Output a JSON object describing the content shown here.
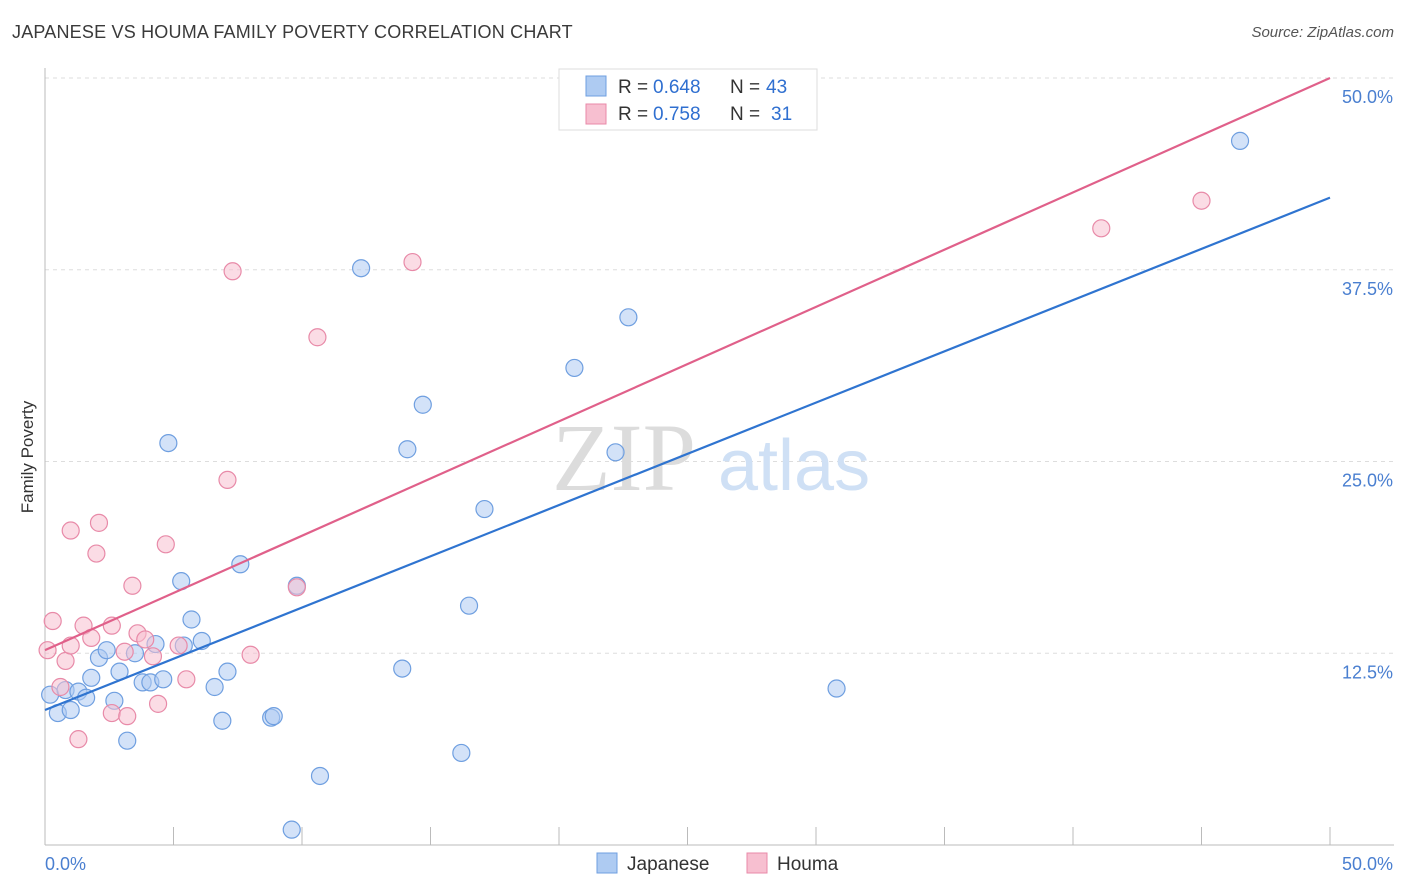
{
  "header": {
    "title": "JAPANESE VS HOUMA FAMILY POVERTY CORRELATION CHART",
    "source": "Source: ZipAtlas.com"
  },
  "watermark": {
    "zip": "ZIP",
    "atlas": "atlas"
  },
  "colors": {
    "japanese_fill": "#aecbf2",
    "japanese_stroke": "#6f9fe0",
    "japanese_line": "#2f74d0",
    "houma_fill": "#f7bfd0",
    "houma_stroke": "#e88aa8",
    "houma_line": "#e0608a",
    "tick_label": "#4a7fd0",
    "grid": "#dddddd"
  },
  "chart_data": {
    "type": "scatter",
    "title": "JAPANESE VS HOUMA FAMILY POVERTY CORRELATION CHART",
    "xlabel": "",
    "ylabel": "Family Poverty",
    "xlim": [
      0,
      50
    ],
    "ylim": [
      0,
      50
    ],
    "x_tick_labels": {
      "min": "0.0%",
      "max": "50.0%"
    },
    "y_ticks": [
      {
        "value": 12.5,
        "label": "12.5%"
      },
      {
        "value": 25.0,
        "label": "25.0%"
      },
      {
        "value": 37.5,
        "label": "37.5%"
      },
      {
        "value": 50.0,
        "label": "50.0%"
      }
    ],
    "legend": {
      "placement": "top-center",
      "entries": [
        {
          "series": "Japanese",
          "r_label": "R =",
          "r_value": "0.648",
          "n_label": "N =",
          "n_value": "43"
        },
        {
          "series": "Houma",
          "r_label": "R =",
          "r_value": "0.758",
          "n_label": "N =",
          "n_value": "31"
        }
      ]
    },
    "series": [
      {
        "name": "Japanese",
        "trend": {
          "x": [
            0,
            50
          ],
          "y": [
            8.8,
            42.2
          ]
        },
        "points": [
          [
            0.2,
            9.8
          ],
          [
            0.5,
            8.6
          ],
          [
            0.8,
            10.1
          ],
          [
            1.0,
            8.8
          ],
          [
            1.3,
            10.0
          ],
          [
            1.6,
            9.6
          ],
          [
            1.8,
            10.9
          ],
          [
            2.1,
            12.2
          ],
          [
            2.4,
            12.7
          ],
          [
            2.7,
            9.4
          ],
          [
            2.9,
            11.3
          ],
          [
            3.2,
            6.8
          ],
          [
            3.5,
            12.5
          ],
          [
            3.8,
            10.6
          ],
          [
            4.1,
            10.6
          ],
          [
            4.3,
            13.1
          ],
          [
            4.6,
            10.8
          ],
          [
            4.8,
            26.2
          ],
          [
            5.3,
            17.2
          ],
          [
            5.4,
            13.0
          ],
          [
            5.7,
            14.7
          ],
          [
            6.1,
            13.3
          ],
          [
            6.6,
            10.3
          ],
          [
            6.9,
            8.1
          ],
          [
            7.1,
            11.3
          ],
          [
            7.6,
            18.3
          ],
          [
            8.8,
            8.3
          ],
          [
            8.9,
            8.4
          ],
          [
            9.6,
            1.0
          ],
          [
            9.8,
            16.9
          ],
          [
            10.7,
            4.5
          ],
          [
            12.3,
            37.6
          ],
          [
            13.9,
            11.5
          ],
          [
            14.1,
            25.8
          ],
          [
            14.7,
            28.7
          ],
          [
            16.2,
            6.0
          ],
          [
            16.5,
            15.6
          ],
          [
            17.1,
            21.9
          ],
          [
            20.6,
            31.1
          ],
          [
            22.2,
            25.6
          ],
          [
            22.7,
            34.4
          ],
          [
            30.8,
            10.2
          ],
          [
            46.5,
            45.9
          ]
        ]
      },
      {
        "name": "Houma",
        "trend": {
          "x": [
            0,
            50
          ],
          "y": [
            12.7,
            50.0
          ]
        },
        "points": [
          [
            0.1,
            12.7
          ],
          [
            0.3,
            14.6
          ],
          [
            0.6,
            10.3
          ],
          [
            0.8,
            12.0
          ],
          [
            1.0,
            13.0
          ],
          [
            1.0,
            20.5
          ],
          [
            1.3,
            6.9
          ],
          [
            1.5,
            14.3
          ],
          [
            1.8,
            13.5
          ],
          [
            2.0,
            19.0
          ],
          [
            2.1,
            21.0
          ],
          [
            2.6,
            14.3
          ],
          [
            2.6,
            8.6
          ],
          [
            3.1,
            12.6
          ],
          [
            3.2,
            8.4
          ],
          [
            3.4,
            16.9
          ],
          [
            3.6,
            13.8
          ],
          [
            3.9,
            13.4
          ],
          [
            4.2,
            12.3
          ],
          [
            4.4,
            9.2
          ],
          [
            4.7,
            19.6
          ],
          [
            5.2,
            13.0
          ],
          [
            5.5,
            10.8
          ],
          [
            7.1,
            23.8
          ],
          [
            7.3,
            37.4
          ],
          [
            8.0,
            12.4
          ],
          [
            9.8,
            16.8
          ],
          [
            10.6,
            33.1
          ],
          [
            14.3,
            38.0
          ],
          [
            41.1,
            40.2
          ],
          [
            45.0,
            42.0
          ]
        ]
      }
    ]
  }
}
